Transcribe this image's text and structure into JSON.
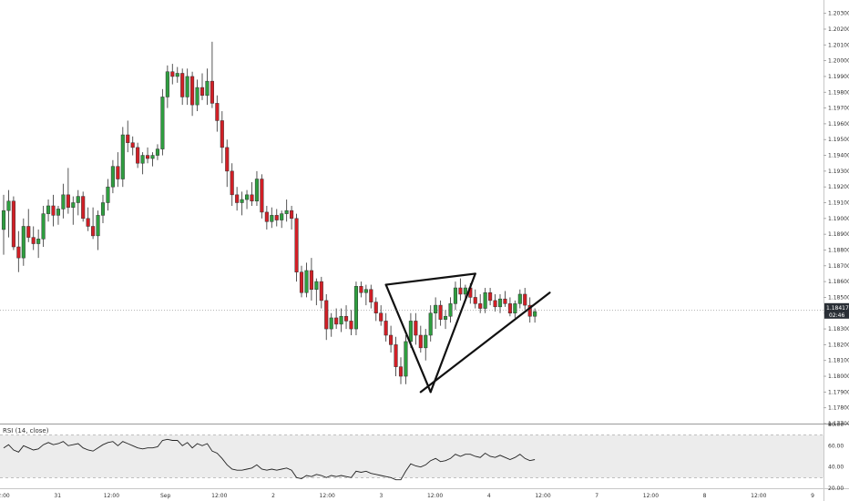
{
  "chart_data": {
    "type": "candlestick",
    "colors": {
      "up": "#2e9e3f",
      "down": "#d21f26",
      "wick": "#444444",
      "rsi_line": "#222222",
      "rsi_band": "#ececec",
      "current_price_bg": "#2a2f36",
      "pattern_lines": "#111111"
    },
    "price_axis": {
      "min": 1.177,
      "max": 1.2035,
      "ticks": [
        "1.20300",
        "1.20200",
        "1.20100",
        "1.20000",
        "1.19900",
        "1.19800",
        "1.19700",
        "1.19600",
        "1.19500",
        "1.19400",
        "1.19300",
        "1.19200",
        "1.19100",
        "1.19000",
        "1.18900",
        "1.18800",
        "1.18700",
        "1.18600",
        "1.18500",
        "1.18400",
        "1.18300",
        "1.18200",
        "1.18100",
        "1.18000",
        "1.17900",
        "1.17800",
        "1.17700"
      ],
      "current_price": "1.18417",
      "current_price_value": 1.18417,
      "countdown": "02:46"
    },
    "time_axis": {
      "labels": [
        "2:00",
        "31",
        "12:00",
        "Sep",
        "12:00",
        "2",
        "12:00",
        "3",
        "12:00",
        "4",
        "12:00",
        "7",
        "12:00",
        "8",
        "12:00",
        "9"
      ]
    },
    "candles": [
      {
        "o": 1.1893,
        "h": 1.1915,
        "l": 1.1877,
        "c": 1.1905
      },
      {
        "o": 1.1905,
        "h": 1.1918,
        "l": 1.1888,
        "c": 1.1911
      },
      {
        "o": 1.1911,
        "h": 1.1914,
        "l": 1.188,
        "c": 1.1882
      },
      {
        "o": 1.1882,
        "h": 1.1892,
        "l": 1.1866,
        "c": 1.1875
      },
      {
        "o": 1.1875,
        "h": 1.19,
        "l": 1.187,
        "c": 1.1895
      },
      {
        "o": 1.1895,
        "h": 1.1906,
        "l": 1.1885,
        "c": 1.1888
      },
      {
        "o": 1.1888,
        "h": 1.1895,
        "l": 1.188,
        "c": 1.1884
      },
      {
        "o": 1.1884,
        "h": 1.1893,
        "l": 1.1875,
        "c": 1.1887
      },
      {
        "o": 1.1887,
        "h": 1.1908,
        "l": 1.1882,
        "c": 1.1903
      },
      {
        "o": 1.1903,
        "h": 1.1912,
        "l": 1.1898,
        "c": 1.1908
      },
      {
        "o": 1.1908,
        "h": 1.1915,
        "l": 1.1895,
        "c": 1.1902
      },
      {
        "o": 1.1902,
        "h": 1.1908,
        "l": 1.1896,
        "c": 1.1906
      },
      {
        "o": 1.1906,
        "h": 1.1922,
        "l": 1.19,
        "c": 1.1915
      },
      {
        "o": 1.1915,
        "h": 1.1932,
        "l": 1.1903,
        "c": 1.1907
      },
      {
        "o": 1.1907,
        "h": 1.1914,
        "l": 1.1896,
        "c": 1.191
      },
      {
        "o": 1.191,
        "h": 1.1918,
        "l": 1.1902,
        "c": 1.1914
      },
      {
        "o": 1.1914,
        "h": 1.1917,
        "l": 1.1898,
        "c": 1.19
      },
      {
        "o": 1.19,
        "h": 1.1907,
        "l": 1.1892,
        "c": 1.1895
      },
      {
        "o": 1.1895,
        "h": 1.1907,
        "l": 1.1887,
        "c": 1.1889
      },
      {
        "o": 1.1889,
        "h": 1.1905,
        "l": 1.188,
        "c": 1.1902
      },
      {
        "o": 1.1902,
        "h": 1.1915,
        "l": 1.1897,
        "c": 1.191
      },
      {
        "o": 1.191,
        "h": 1.1925,
        "l": 1.1905,
        "c": 1.192
      },
      {
        "o": 1.192,
        "h": 1.1937,
        "l": 1.1916,
        "c": 1.1933
      },
      {
        "o": 1.1933,
        "h": 1.1942,
        "l": 1.192,
        "c": 1.1925
      },
      {
        "o": 1.1925,
        "h": 1.1958,
        "l": 1.192,
        "c": 1.1953
      },
      {
        "o": 1.1953,
        "h": 1.1962,
        "l": 1.1942,
        "c": 1.1948
      },
      {
        "o": 1.1948,
        "h": 1.1952,
        "l": 1.194,
        "c": 1.1945
      },
      {
        "o": 1.1945,
        "h": 1.1948,
        "l": 1.1932,
        "c": 1.1935
      },
      {
        "o": 1.1935,
        "h": 1.1942,
        "l": 1.1928,
        "c": 1.194
      },
      {
        "o": 1.194,
        "h": 1.1945,
        "l": 1.1935,
        "c": 1.1938
      },
      {
        "o": 1.1938,
        "h": 1.1942,
        "l": 1.1933,
        "c": 1.194
      },
      {
        "o": 1.194,
        "h": 1.1947,
        "l": 1.1937,
        "c": 1.1944
      },
      {
        "o": 1.1944,
        "h": 1.1982,
        "l": 1.194,
        "c": 1.1977
      },
      {
        "o": 1.1977,
        "h": 1.1997,
        "l": 1.197,
        "c": 1.1993
      },
      {
        "o": 1.1993,
        "h": 1.1998,
        "l": 1.1985,
        "c": 1.199
      },
      {
        "o": 1.199,
        "h": 1.1996,
        "l": 1.1986,
        "c": 1.1992
      },
      {
        "o": 1.1992,
        "h": 1.1995,
        "l": 1.1972,
        "c": 1.1977
      },
      {
        "o": 1.1977,
        "h": 1.1995,
        "l": 1.1972,
        "c": 1.199
      },
      {
        "o": 1.199,
        "h": 1.1993,
        "l": 1.1965,
        "c": 1.1972
      },
      {
        "o": 1.1972,
        "h": 1.1988,
        "l": 1.1968,
        "c": 1.1983
      },
      {
        "o": 1.1983,
        "h": 1.1992,
        "l": 1.1975,
        "c": 1.1978
      },
      {
        "o": 1.1978,
        "h": 1.1995,
        "l": 1.1972,
        "c": 1.1987
      },
      {
        "o": 1.1987,
        "h": 1.2012,
        "l": 1.197,
        "c": 1.1973
      },
      {
        "o": 1.1973,
        "h": 1.1978,
        "l": 1.1955,
        "c": 1.1962
      },
      {
        "o": 1.1962,
        "h": 1.1968,
        "l": 1.1935,
        "c": 1.1945
      },
      {
        "o": 1.1945,
        "h": 1.195,
        "l": 1.192,
        "c": 1.193
      },
      {
        "o": 1.193,
        "h": 1.1935,
        "l": 1.1908,
        "c": 1.1915
      },
      {
        "o": 1.1915,
        "h": 1.192,
        "l": 1.1905,
        "c": 1.191
      },
      {
        "o": 1.191,
        "h": 1.1917,
        "l": 1.1902,
        "c": 1.1912
      },
      {
        "o": 1.1912,
        "h": 1.1918,
        "l": 1.1906,
        "c": 1.1915
      },
      {
        "o": 1.1915,
        "h": 1.1923,
        "l": 1.1908,
        "c": 1.1911
      },
      {
        "o": 1.1911,
        "h": 1.193,
        "l": 1.1908,
        "c": 1.1925
      },
      {
        "o": 1.1925,
        "h": 1.1928,
        "l": 1.19,
        "c": 1.1904
      },
      {
        "o": 1.1904,
        "h": 1.1908,
        "l": 1.1893,
        "c": 1.1898
      },
      {
        "o": 1.1898,
        "h": 1.1907,
        "l": 1.1894,
        "c": 1.1902
      },
      {
        "o": 1.1902,
        "h": 1.1906,
        "l": 1.1895,
        "c": 1.1899
      },
      {
        "o": 1.1899,
        "h": 1.1905,
        "l": 1.1894,
        "c": 1.1903
      },
      {
        "o": 1.1903,
        "h": 1.1912,
        "l": 1.1898,
        "c": 1.1905
      },
      {
        "o": 1.1905,
        "h": 1.1908,
        "l": 1.1893,
        "c": 1.19
      },
      {
        "o": 1.19,
        "h": 1.1903,
        "l": 1.186,
        "c": 1.1866
      },
      {
        "o": 1.1866,
        "h": 1.187,
        "l": 1.185,
        "c": 1.1853
      },
      {
        "o": 1.1853,
        "h": 1.1872,
        "l": 1.185,
        "c": 1.1867
      },
      {
        "o": 1.1867,
        "h": 1.1875,
        "l": 1.1848,
        "c": 1.1855
      },
      {
        "o": 1.1855,
        "h": 1.1862,
        "l": 1.1845,
        "c": 1.186
      },
      {
        "o": 1.186,
        "h": 1.1863,
        "l": 1.1843,
        "c": 1.1848
      },
      {
        "o": 1.1848,
        "h": 1.1852,
        "l": 1.1823,
        "c": 1.183
      },
      {
        "o": 1.183,
        "h": 1.184,
        "l": 1.1825,
        "c": 1.1837
      },
      {
        "o": 1.1837,
        "h": 1.1843,
        "l": 1.183,
        "c": 1.1833
      },
      {
        "o": 1.1833,
        "h": 1.1843,
        "l": 1.1828,
        "c": 1.1838
      },
      {
        "o": 1.1838,
        "h": 1.1845,
        "l": 1.183,
        "c": 1.1835
      },
      {
        "o": 1.1835,
        "h": 1.1842,
        "l": 1.1826,
        "c": 1.183
      },
      {
        "o": 1.183,
        "h": 1.186,
        "l": 1.1826,
        "c": 1.1857
      },
      {
        "o": 1.1857,
        "h": 1.186,
        "l": 1.185,
        "c": 1.1853
      },
      {
        "o": 1.1853,
        "h": 1.1858,
        "l": 1.1845,
        "c": 1.1855
      },
      {
        "o": 1.1855,
        "h": 1.1858,
        "l": 1.1843,
        "c": 1.1847
      },
      {
        "o": 1.1847,
        "h": 1.185,
        "l": 1.1835,
        "c": 1.184
      },
      {
        "o": 1.184,
        "h": 1.1845,
        "l": 1.1832,
        "c": 1.1835
      },
      {
        "o": 1.1835,
        "h": 1.184,
        "l": 1.1822,
        "c": 1.1826
      },
      {
        "o": 1.1826,
        "h": 1.1832,
        "l": 1.1815,
        "c": 1.182
      },
      {
        "o": 1.182,
        "h": 1.1825,
        "l": 1.18,
        "c": 1.1806
      },
      {
        "o": 1.1806,
        "h": 1.1812,
        "l": 1.1795,
        "c": 1.18
      },
      {
        "o": 1.18,
        "h": 1.1826,
        "l": 1.1795,
        "c": 1.1822
      },
      {
        "o": 1.1822,
        "h": 1.184,
        "l": 1.1818,
        "c": 1.1835
      },
      {
        "o": 1.1835,
        "h": 1.184,
        "l": 1.182,
        "c": 1.1826
      },
      {
        "o": 1.1826,
        "h": 1.1832,
        "l": 1.1815,
        "c": 1.1818
      },
      {
        "o": 1.1818,
        "h": 1.183,
        "l": 1.181,
        "c": 1.1826
      },
      {
        "o": 1.1826,
        "h": 1.1845,
        "l": 1.1822,
        "c": 1.184
      },
      {
        "o": 1.184,
        "h": 1.185,
        "l": 1.183,
        "c": 1.1845
      },
      {
        "o": 1.1845,
        "h": 1.1848,
        "l": 1.1832,
        "c": 1.1836
      },
      {
        "o": 1.1836,
        "h": 1.1842,
        "l": 1.183,
        "c": 1.1838
      },
      {
        "o": 1.1838,
        "h": 1.185,
        "l": 1.1834,
        "c": 1.1846
      },
      {
        "o": 1.1846,
        "h": 1.186,
        "l": 1.1842,
        "c": 1.1856
      },
      {
        "o": 1.1856,
        "h": 1.1862,
        "l": 1.1848,
        "c": 1.1852
      },
      {
        "o": 1.1852,
        "h": 1.1858,
        "l": 1.1848,
        "c": 1.1856
      },
      {
        "o": 1.1856,
        "h": 1.1859,
        "l": 1.1846,
        "c": 1.185
      },
      {
        "o": 1.185,
        "h": 1.1855,
        "l": 1.1843,
        "c": 1.1846
      },
      {
        "o": 1.1846,
        "h": 1.1852,
        "l": 1.184,
        "c": 1.1843
      },
      {
        "o": 1.1843,
        "h": 1.1856,
        "l": 1.184,
        "c": 1.1853
      },
      {
        "o": 1.1853,
        "h": 1.1856,
        "l": 1.1845,
        "c": 1.1848
      },
      {
        "o": 1.1848,
        "h": 1.1852,
        "l": 1.1841,
        "c": 1.1844
      },
      {
        "o": 1.1844,
        "h": 1.1852,
        "l": 1.184,
        "c": 1.1849
      },
      {
        "o": 1.1849,
        "h": 1.1854,
        "l": 1.1844,
        "c": 1.1846
      },
      {
        "o": 1.1846,
        "h": 1.185,
        "l": 1.1838,
        "c": 1.184
      },
      {
        "o": 1.184,
        "h": 1.1848,
        "l": 1.1837,
        "c": 1.1846
      },
      {
        "o": 1.1846,
        "h": 1.1855,
        "l": 1.1843,
        "c": 1.1852
      },
      {
        "o": 1.1852,
        "h": 1.1856,
        "l": 1.1842,
        "c": 1.1845
      },
      {
        "o": 1.1845,
        "h": 1.185,
        "l": 1.1834,
        "c": 1.1838
      },
      {
        "o": 1.1838,
        "h": 1.1843,
        "l": 1.1834,
        "c": 1.1841
      }
    ],
    "pattern_lines": [
      {
        "name": "pattern-upper-left",
        "from": [
          77,
          1.1858
        ],
        "to": [
          95,
          1.1865
        ]
      },
      {
        "name": "pattern-left-leg",
        "from": [
          77,
          1.1858
        ],
        "to": [
          86,
          1.179
        ]
      },
      {
        "name": "pattern-right-leg",
        "from": [
          86,
          1.179
        ],
        "to": [
          95,
          1.1865
        ]
      },
      {
        "name": "pattern-lower-trendline",
        "from": [
          84,
          1.179
        ],
        "to": [
          110,
          1.1853
        ]
      }
    ],
    "rsi": {
      "label": "RSI (14, close)",
      "min": 20,
      "max": 80,
      "ticks": [
        "80.00",
        "60.00",
        "40.00",
        "20.00"
      ],
      "band": [
        30,
        70
      ],
      "values": [
        58,
        61,
        56,
        54,
        60,
        58,
        56,
        57,
        61,
        63,
        61,
        62,
        64,
        60,
        61,
        62,
        58,
        56,
        55,
        58,
        61,
        63,
        64,
        60,
        64,
        62,
        60,
        58,
        57,
        58,
        58,
        59,
        65,
        66,
        65,
        65,
        60,
        63,
        58,
        62,
        60,
        62,
        55,
        53,
        48,
        42,
        38,
        37,
        37,
        38,
        39,
        42,
        38,
        37,
        38,
        37,
        38,
        39,
        37,
        30,
        29,
        32,
        31,
        33,
        32,
        30,
        32,
        31,
        32,
        31,
        30,
        36,
        35,
        36,
        34,
        33,
        32,
        31,
        30,
        28,
        28,
        36,
        43,
        41,
        40,
        42,
        46,
        48,
        45,
        46,
        48,
        52,
        50,
        52,
        52,
        50,
        49,
        53,
        50,
        49,
        51,
        49,
        47,
        49,
        52,
        48,
        46,
        47
      ]
    }
  }
}
